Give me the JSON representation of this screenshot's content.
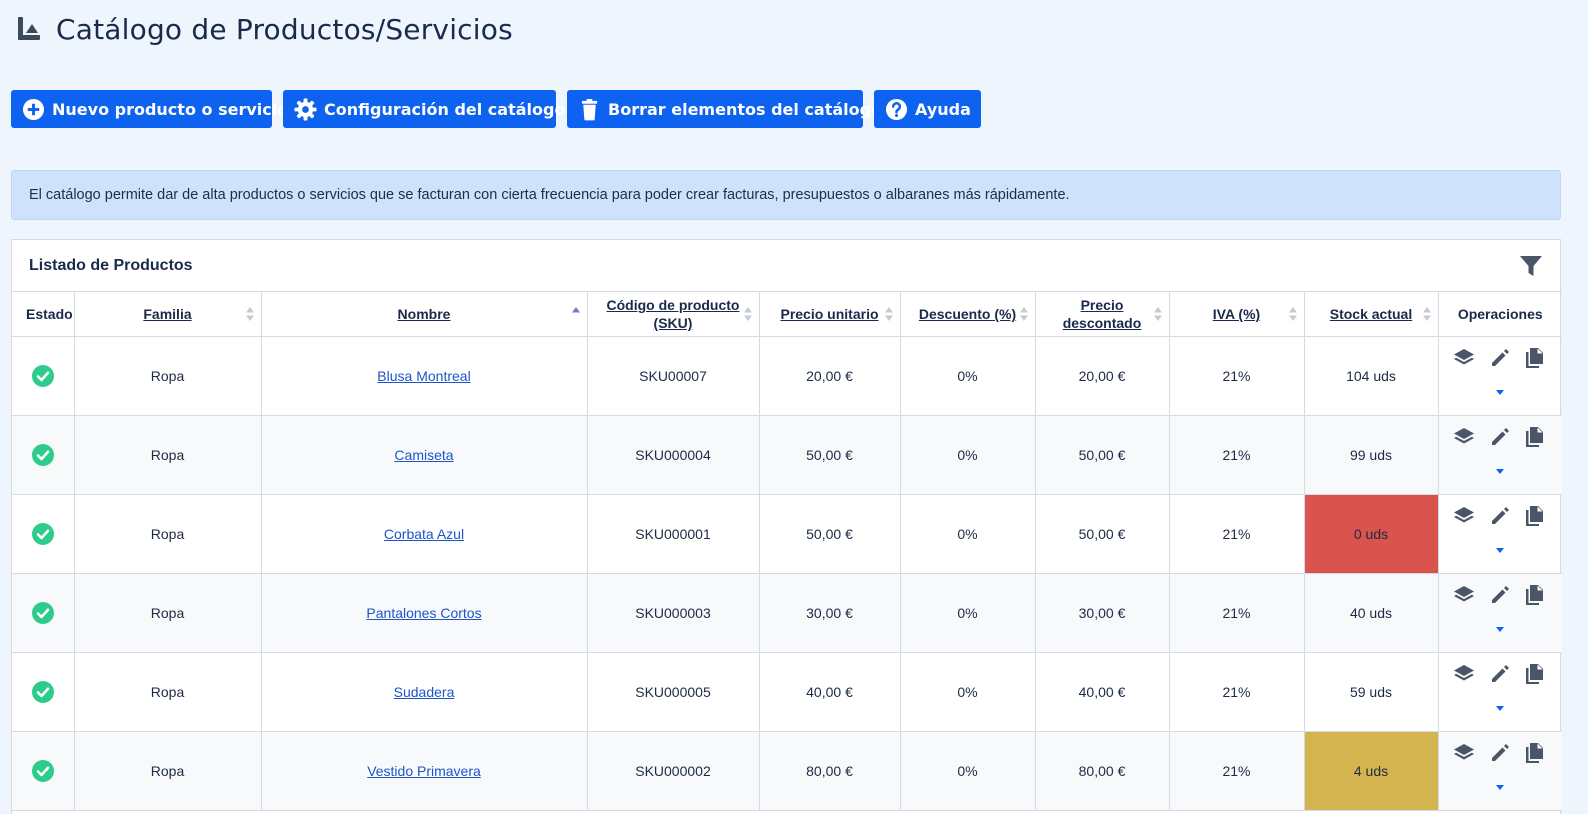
{
  "page": {
    "title": "Catálogo de Productos/Servicios",
    "title_icon": "chart-icon"
  },
  "toolbar": {
    "buttons": [
      {
        "label": "Nuevo producto o servicio",
        "icon": "plus-circle-icon"
      },
      {
        "label": "Configuración del catálogo",
        "icon": "gear-icon"
      },
      {
        "label": "Borrar elementos del catálogo",
        "icon": "trash-icon"
      },
      {
        "label": "Ayuda",
        "icon": "question-circle-icon"
      }
    ]
  },
  "info": {
    "text": "El catálogo permite dar de alta productos o servicios que se facturan con cierta frecuencia para poder crear facturas, presupuestos o albaranes más rápidamente."
  },
  "panel": {
    "title": "Listado de Productos",
    "filter_icon": "filter-icon"
  },
  "table": {
    "columns": [
      {
        "label": "Estado",
        "sortable": false
      },
      {
        "label": "Familia",
        "sortable": true
      },
      {
        "label": "Nombre",
        "sortable": true,
        "sorted": "asc"
      },
      {
        "label": "Código de producto (SKU)",
        "sortable": true
      },
      {
        "label": "Precio unitario",
        "sortable": true
      },
      {
        "label": "Descuento (%)",
        "sortable": true
      },
      {
        "label": "Precio descontado",
        "sortable": true
      },
      {
        "label": "IVA (%)",
        "sortable": true
      },
      {
        "label": "Stock actual",
        "sortable": true
      },
      {
        "label": "Operaciones",
        "sortable": false
      }
    ],
    "rows": [
      {
        "status": "active",
        "familia": "Ropa",
        "nombre": "Blusa Montreal",
        "sku": "SKU00007",
        "precio": "20,00 €",
        "descuento": "0%",
        "descontado": "20,00 €",
        "iva": "21%",
        "stock": "104 uds",
        "stock_level": "normal"
      },
      {
        "status": "active",
        "familia": "Ropa",
        "nombre": "Camiseta",
        "sku": "SKU000004",
        "precio": "50,00 €",
        "descuento": "0%",
        "descontado": "50,00 €",
        "iva": "21%",
        "stock": "99 uds",
        "stock_level": "normal"
      },
      {
        "status": "active",
        "familia": "Ropa",
        "nombre": "Corbata Azul",
        "sku": "SKU000001",
        "precio": "50,00 €",
        "descuento": "0%",
        "descontado": "50,00 €",
        "iva": "21%",
        "stock": "0 uds",
        "stock_level": "empty"
      },
      {
        "status": "active",
        "familia": "Ropa",
        "nombre": "Pantalones Cortos",
        "sku": "SKU000003",
        "precio": "30,00 €",
        "descuento": "0%",
        "descontado": "30,00 €",
        "iva": "21%",
        "stock": "40 uds",
        "stock_level": "normal"
      },
      {
        "status": "active",
        "familia": "Ropa",
        "nombre": "Sudadera",
        "sku": "SKU000005",
        "precio": "40,00 €",
        "descuento": "0%",
        "descontado": "40,00 €",
        "iva": "21%",
        "stock": "59 uds",
        "stock_level": "normal"
      },
      {
        "status": "active",
        "familia": "Ropa",
        "nombre": "Vestido Primavera",
        "sku": "SKU000002",
        "precio": "80,00 €",
        "descuento": "0%",
        "descontado": "80,00 €",
        "iva": "21%",
        "stock": "4 uds",
        "stock_level": "low"
      }
    ],
    "row_operations": [
      "layers-icon",
      "pencil-icon",
      "copy-icon",
      "caret-down-icon"
    ]
  },
  "colors": {
    "primary": "#0d63f0",
    "success": "#2ecc8a",
    "stock_empty": "#d9534f",
    "stock_low": "#d4b44e",
    "link": "#1d55c9",
    "info_bg": "#cfe2fb",
    "page_bg": "#eff5fd"
  }
}
